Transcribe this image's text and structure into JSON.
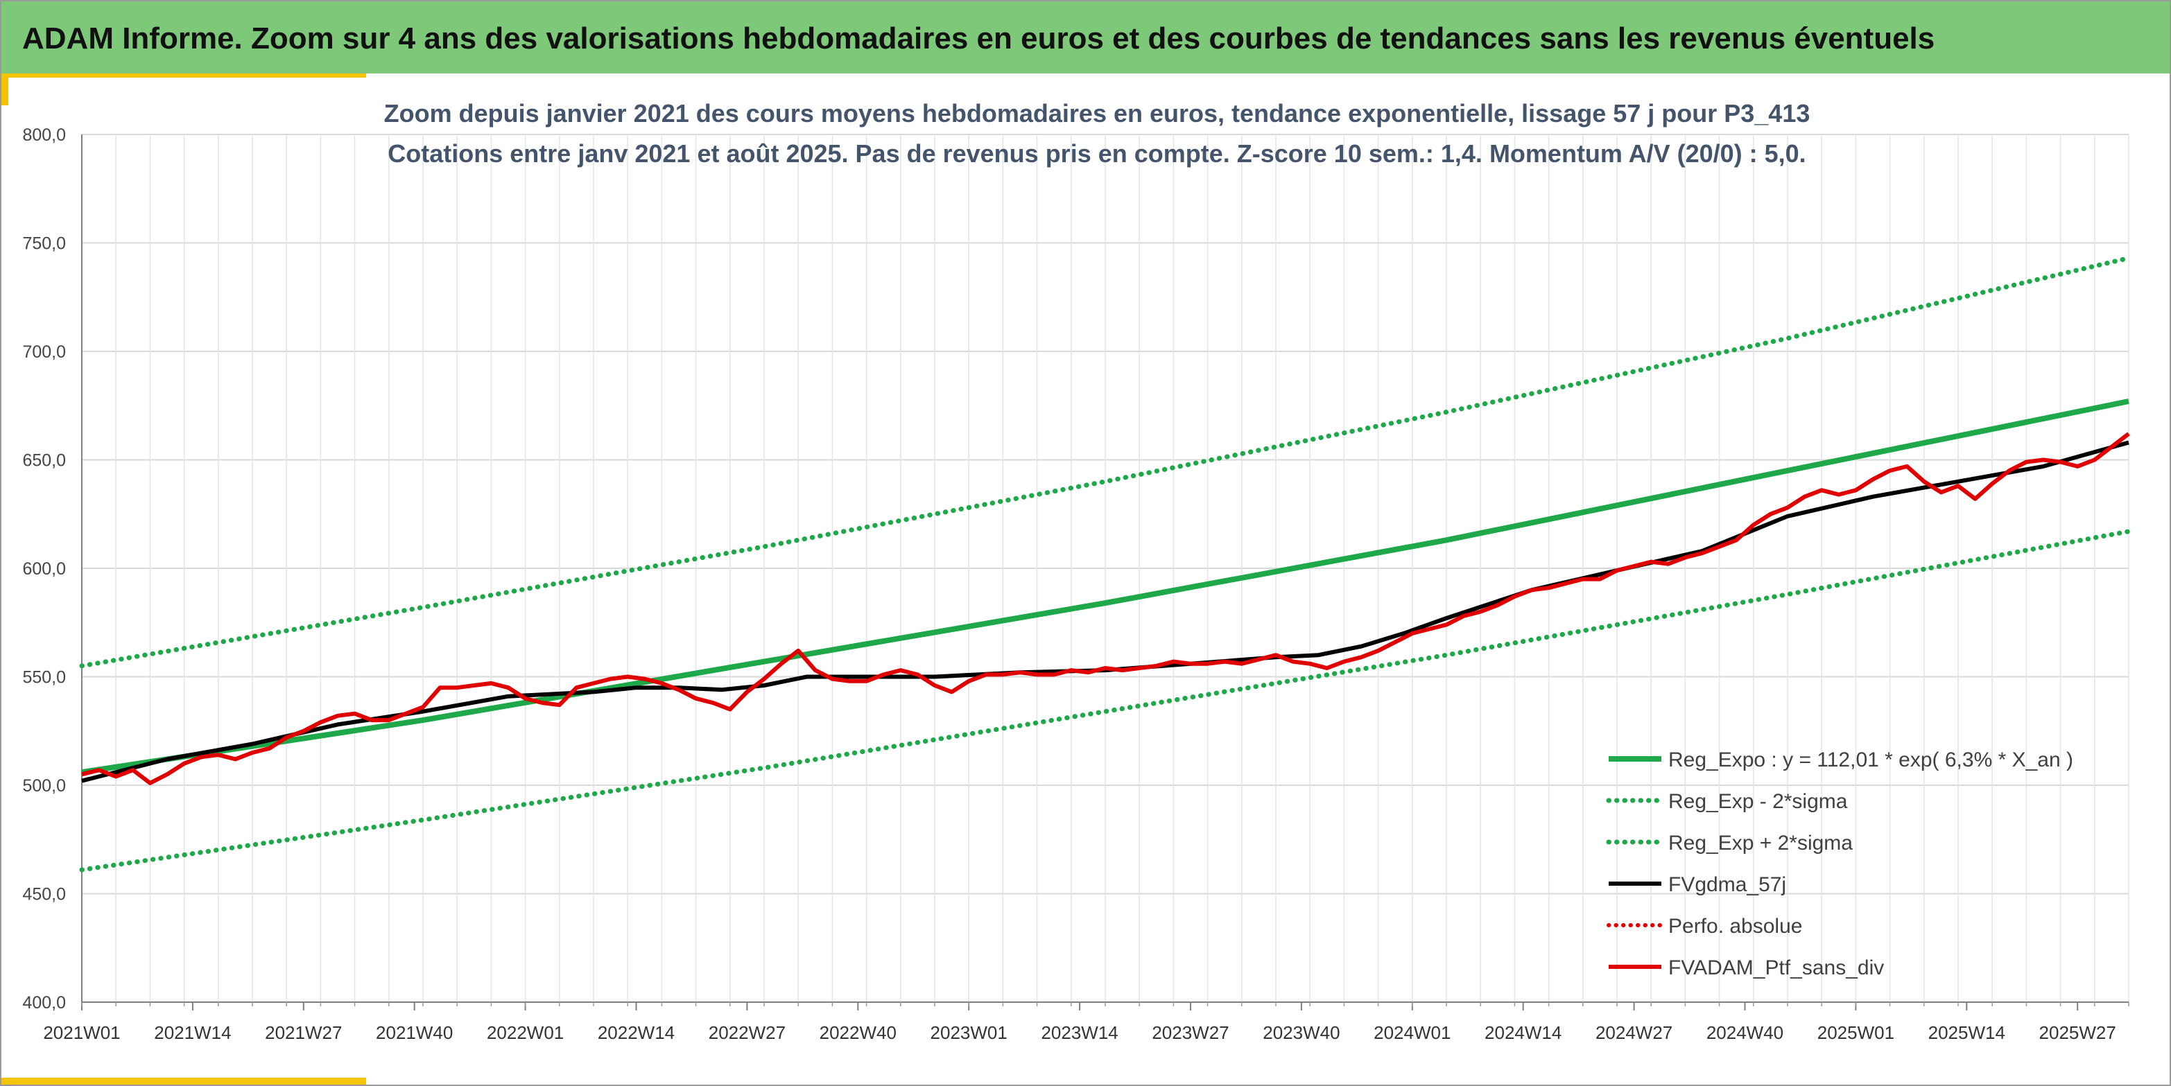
{
  "banner": {
    "title": "ADAM Informe. Zoom sur 4 ans des valorisations hebdomadaires en euros et des courbes de tendances sans les revenus éventuels"
  },
  "colors": {
    "banner_bg": "#7ec87a",
    "accent": "#f5c400",
    "reg_expo": "#1ea84a",
    "sigma": "#1ea84a",
    "fvgdma": "#000000",
    "perfo": "#e00000",
    "fvadam": "#e00000"
  },
  "chart_data": {
    "type": "line",
    "title": "Zoom depuis janvier 2021 des cours moyens hebdomadaires en euros, tendance exponentielle, lissage 57 j pour P3_413",
    "subtitle": "Cotations entre janv 2021 et août 2025. Pas de revenus pris en compte. Z-score 10 sem.: 1,4. Momentum A/V (20/0) : 5,0.",
    "xlabel": "",
    "ylabel": "",
    "ylim": [
      400,
      800
    ],
    "y_ticks": [
      "400,0",
      "450,0",
      "500,0",
      "550,0",
      "600,0",
      "650,0",
      "700,0",
      "750,0",
      "800,0"
    ],
    "x_range": [
      0,
      240
    ],
    "x_ticks": [
      {
        "x": 0,
        "label": "2021W01"
      },
      {
        "x": 13,
        "label": "2021W14"
      },
      {
        "x": 26,
        "label": "2021W27"
      },
      {
        "x": 39,
        "label": "2021W40"
      },
      {
        "x": 52,
        "label": "2022W01"
      },
      {
        "x": 65,
        "label": "2022W14"
      },
      {
        "x": 78,
        "label": "2022W27"
      },
      {
        "x": 91,
        "label": "2022W40"
      },
      {
        "x": 104,
        "label": "2023W01"
      },
      {
        "x": 117,
        "label": "2023W14"
      },
      {
        "x": 130,
        "label": "2023W27"
      },
      {
        "x": 143,
        "label": "2023W40"
      },
      {
        "x": 156,
        "label": "2024W01"
      },
      {
        "x": 169,
        "label": "2024W14"
      },
      {
        "x": 182,
        "label": "2024W27"
      },
      {
        "x": 195,
        "label": "2024W40"
      },
      {
        "x": 208,
        "label": "2025W01"
      },
      {
        "x": 221,
        "label": "2025W14"
      },
      {
        "x": 234,
        "label": "2025W27"
      }
    ],
    "grid": true,
    "legend_position": "bottom-right",
    "series": [
      {
        "key": "reg_expo",
        "name": "Reg_Expo : y = 112,01 * exp( 6,3% *  X_an )",
        "style": "solid",
        "x": [
          0,
          40,
          80,
          120,
          160,
          200,
          240
        ],
        "values": [
          506,
          530,
          557,
          584,
          613,
          645,
          677
        ]
      },
      {
        "key": "reg_minus",
        "name": "Reg_Exp - 2*sigma",
        "style": "dotted",
        "x": [
          0,
          40,
          80,
          120,
          160,
          200,
          240
        ],
        "values": [
          461,
          484,
          508,
          534,
          560,
          588,
          617
        ]
      },
      {
        "key": "reg_plus",
        "name": "Reg_Exp + 2*sigma",
        "style": "dotted",
        "x": [
          0,
          40,
          80,
          120,
          160,
          200,
          240
        ],
        "values": [
          555,
          582,
          610,
          640,
          672,
          706,
          743
        ]
      },
      {
        "key": "fvgdma",
        "name": "FVgdma_57j",
        "style": "solid",
        "x": [
          0,
          10,
          20,
          30,
          40,
          50,
          60,
          65,
          70,
          75,
          80,
          85,
          90,
          100,
          110,
          120,
          130,
          140,
          145,
          150,
          155,
          160,
          170,
          180,
          190,
          200,
          210,
          220,
          230,
          240
        ],
        "values": [
          502,
          512,
          519,
          528,
          534,
          541,
          543,
          545,
          545,
          544,
          546,
          550,
          550,
          550,
          552,
          553,
          556,
          559,
          560,
          564,
          570,
          577,
          590,
          599,
          608,
          624,
          633,
          640,
          647,
          658
        ]
      },
      {
        "key": "perfo",
        "name": "Perfo. absolue",
        "style": "dotted",
        "x": [],
        "values": []
      },
      {
        "key": "fvadam",
        "name": "FVADAM_Ptf_sans_div",
        "style": "solid",
        "x": [
          0,
          2,
          4,
          6,
          8,
          10,
          12,
          14,
          16,
          18,
          20,
          22,
          24,
          26,
          28,
          30,
          32,
          34,
          36,
          38,
          40,
          42,
          44,
          46,
          48,
          50,
          52,
          54,
          56,
          58,
          60,
          62,
          64,
          66,
          68,
          70,
          72,
          74,
          76,
          78,
          80,
          82,
          84,
          86,
          88,
          90,
          92,
          94,
          96,
          98,
          100,
          102,
          104,
          106,
          108,
          110,
          112,
          114,
          116,
          118,
          120,
          122,
          124,
          126,
          128,
          130,
          132,
          134,
          136,
          138,
          140,
          142,
          144,
          146,
          148,
          150,
          152,
          154,
          156,
          158,
          160,
          162,
          164,
          166,
          168,
          170,
          172,
          174,
          176,
          178,
          180,
          182,
          184,
          186,
          188,
          190,
          192,
          194,
          196,
          198,
          200,
          202,
          204,
          206,
          208,
          210,
          212,
          214,
          216,
          218,
          220,
          222,
          224,
          226,
          228,
          230,
          232,
          234,
          236,
          238,
          240
        ],
        "values": [
          505,
          507,
          504,
          507,
          501,
          505,
          510,
          513,
          514,
          512,
          515,
          517,
          522,
          525,
          529,
          532,
          533,
          530,
          530,
          533,
          536,
          545,
          545,
          546,
          547,
          545,
          540,
          538,
          537,
          545,
          547,
          549,
          550,
          549,
          547,
          544,
          540,
          538,
          535,
          543,
          549,
          556,
          562,
          553,
          549,
          548,
          548,
          551,
          553,
          551,
          546,
          543,
          548,
          551,
          551,
          552,
          551,
          551,
          553,
          552,
          554,
          553,
          554,
          555,
          557,
          556,
          556,
          557,
          556,
          558,
          560,
          557,
          556,
          554,
          557,
          559,
          562,
          566,
          570,
          572,
          574,
          578,
          580,
          583,
          587,
          590,
          591,
          593,
          595,
          595,
          599,
          601,
          603,
          602,
          605,
          607,
          610,
          613,
          620,
          625,
          628,
          633,
          636,
          634,
          636,
          641,
          645,
          647,
          640,
          635,
          638,
          632,
          639,
          645,
          649,
          650,
          649,
          647,
          650,
          656,
          662
        ]
      }
    ]
  }
}
